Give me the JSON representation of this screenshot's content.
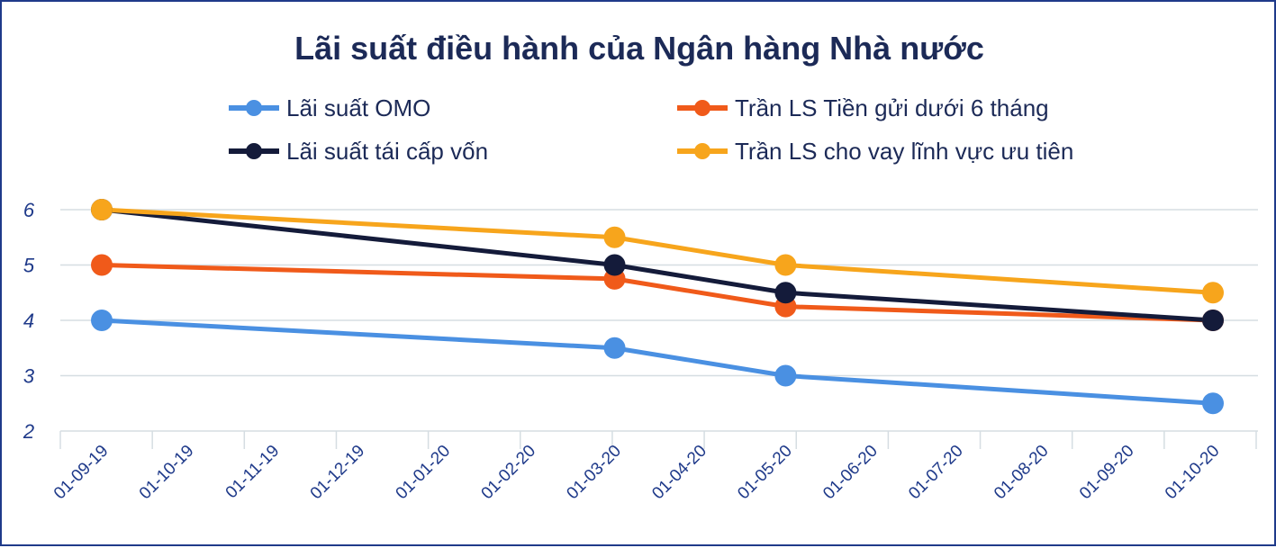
{
  "chart_data": {
    "type": "line",
    "title": "Lãi suất điều hành của Ngân hàng Nhà nước",
    "xlabel": "",
    "ylabel": "",
    "categories": [
      "01-09-19",
      "01-10-19",
      "01-11-19",
      "01-12-19",
      "01-01-20",
      "01-02-20",
      "01-03-20",
      "01-04-20",
      "01-05-20",
      "01-06-20",
      "01-07-20",
      "01-08-20",
      "01-09-20",
      "01-10-20"
    ],
    "yticks": [
      "2",
      "3",
      "4",
      "5",
      "6"
    ],
    "ylim": [
      2,
      6
    ],
    "grid": true,
    "legend_position": "top",
    "series": [
      {
        "name": "Lãi suất OMO",
        "color": "#4a90e2",
        "points": [
          {
            "i": 0,
            "y": 4
          },
          {
            "i": 6,
            "y": 3.5
          },
          {
            "i": 8,
            "y": 3
          },
          {
            "i": 13,
            "y": 2.5
          }
        ]
      },
      {
        "name": "Trần LS Tiền gửi dưới 6 tháng",
        "color": "#f05a1a",
        "points": [
          {
            "i": 0,
            "y": 5
          },
          {
            "i": 6,
            "y": 4.75
          },
          {
            "i": 8,
            "y": 4.25
          },
          {
            "i": 13,
            "y": 4
          }
        ]
      },
      {
        "name": "Lãi suất tái cấp vốn",
        "color": "#141b3a",
        "points": [
          {
            "i": 0,
            "y": 6
          },
          {
            "i": 6,
            "y": 5
          },
          {
            "i": 8,
            "y": 4.5
          },
          {
            "i": 13,
            "y": 4
          }
        ]
      },
      {
        "name": "Trần LS cho vay lĩnh vực ưu tiên",
        "color": "#f7a51c",
        "points": [
          {
            "i": 0,
            "y": 6
          },
          {
            "i": 6,
            "y": 5.5
          },
          {
            "i": 8,
            "y": 5
          },
          {
            "i": 13,
            "y": 4.5
          }
        ]
      }
    ]
  }
}
